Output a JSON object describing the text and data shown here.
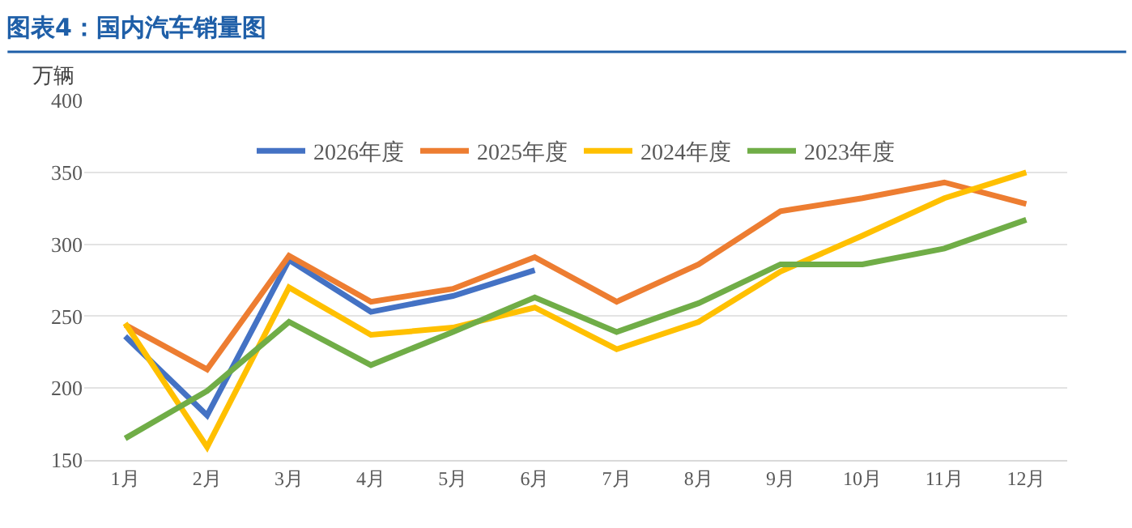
{
  "chart_data": {
    "type": "line",
    "title": "图表4：国内汽车销量图",
    "ylabel": "万辆",
    "categories": [
      "1月",
      "2月",
      "3月",
      "4月",
      "5月",
      "6月",
      "7月",
      "8月",
      "9月",
      "10月",
      "11月",
      "12月"
    ],
    "series": [
      {
        "name": "2026年度",
        "color": "#4472c4",
        "values": [
          236,
          181,
          289,
          253,
          264,
          282,
          null,
          null,
          null,
          null,
          null,
          null
        ]
      },
      {
        "name": "2025年度",
        "color": "#ed7d31",
        "values": [
          244,
          213,
          292,
          260,
          269,
          291,
          260,
          286,
          323,
          332,
          343,
          328
        ]
      },
      {
        "name": "2024年度",
        "color": "#ffc000",
        "values": [
          245,
          159,
          270,
          237,
          242,
          256,
          227,
          246,
          281,
          306,
          332,
          350
        ]
      },
      {
        "name": "2023年度",
        "color": "#70ad47",
        "values": [
          165,
          198,
          246,
          216,
          239,
          263,
          239,
          259,
          286,
          286,
          297,
          317
        ]
      }
    ],
    "ylim": [
      150,
      400
    ],
    "yticks": [
      150,
      200,
      250,
      300,
      350,
      400
    ],
    "grid": "y",
    "legend": "top",
    "marker": "none",
    "line_style": "solid"
  }
}
